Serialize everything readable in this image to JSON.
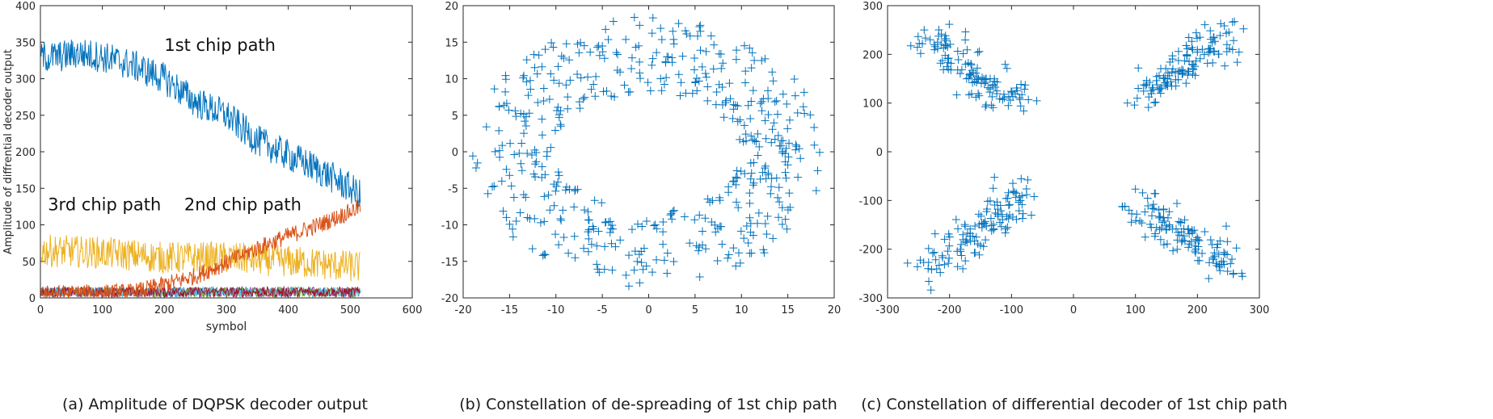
{
  "captions": {
    "a": "(a) Amplitude of DQPSK decoder output",
    "b": "(b) Constellation of de-spreading of 1st chip path",
    "c": "(c) Constellation of differential decoder of 1st chip path"
  },
  "colors": {
    "series1": "#0072BD",
    "series2": "#D95319",
    "series3": "#EDB120",
    "series4": "#7E2F8E",
    "series5": "#77AC30",
    "series6": "#4DBEEE",
    "series7": "#A2142F",
    "scatter": "#0072BD"
  },
  "chart_data": [
    {
      "type": "line",
      "xlabel": "symbol",
      "ylabel": "Amplitude of diffrential decoder output",
      "xlim": [
        0,
        600
      ],
      "ylim": [
        0,
        400
      ],
      "xticks": [
        "0",
        "100",
        "200",
        "300",
        "400",
        "500",
        "600"
      ],
      "yticks": [
        "0",
        "50",
        "100",
        "150",
        "200",
        "250",
        "300",
        "350",
        "400"
      ],
      "grid": false,
      "annotations": [
        {
          "text": "1st chip path",
          "x": 200,
          "y": 338
        },
        {
          "text": "2nd chip path",
          "x": 232,
          "y": 120
        },
        {
          "text": "3rd chip path",
          "x": 12,
          "y": 120
        }
      ],
      "series": [
        {
          "name": "1st chip path",
          "color_key": "series1",
          "x_range": [
            1,
            516
          ],
          "envelope_x": [
            0,
            30,
            60,
            100,
            150,
            200,
            250,
            300,
            350,
            400,
            450,
            500,
            516
          ],
          "envelope_y": [
            330,
            330,
            335,
            330,
            318,
            300,
            268,
            250,
            215,
            195,
            175,
            150,
            140
          ],
          "noise_amplitude": 22
        },
        {
          "name": "2nd chip path",
          "color_key": "series2",
          "x_range": [
            1,
            516
          ],
          "envelope_x": [
            0,
            150,
            200,
            250,
            300,
            350,
            400,
            450,
            500,
            516
          ],
          "envelope_y": [
            5,
            8,
            18,
            30,
            48,
            68,
            85,
            100,
            118,
            125
          ],
          "noise_amplitude": 12
        },
        {
          "name": "3rd chip path",
          "color_key": "series3",
          "x_range": [
            1,
            516
          ],
          "envelope_x": [
            0,
            100,
            200,
            300,
            400,
            516
          ],
          "envelope_y": [
            65,
            62,
            55,
            55,
            50,
            42
          ],
          "noise_amplitude": 22
        },
        {
          "name": "",
          "color_key": "series4",
          "x_range": [
            1,
            516
          ],
          "envelope_x": [
            0,
            516
          ],
          "envelope_y": [
            8,
            8
          ],
          "noise_amplitude": 7
        },
        {
          "name": "",
          "color_key": "series5",
          "x_range": [
            1,
            516
          ],
          "envelope_x": [
            0,
            516
          ],
          "envelope_y": [
            8,
            8
          ],
          "noise_amplitude": 7
        },
        {
          "name": "",
          "color_key": "series6",
          "x_range": [
            1,
            516
          ],
          "envelope_x": [
            0,
            516
          ],
          "envelope_y": [
            8,
            8
          ],
          "noise_amplitude": 7
        },
        {
          "name": "",
          "color_key": "series7",
          "x_range": [
            1,
            516
          ],
          "envelope_x": [
            0,
            516
          ],
          "envelope_y": [
            8,
            8
          ],
          "noise_amplitude": 7
        }
      ]
    },
    {
      "type": "scatter",
      "marker": "+",
      "xlabel": "",
      "ylabel": "",
      "xlim": [
        -20,
        20
      ],
      "ylim": [
        -20,
        20
      ],
      "xticks": [
        "-20",
        "-15",
        "-10",
        "-5",
        "0",
        "5",
        "10",
        "15",
        "20"
      ],
      "yticks": [
        "-20",
        "-15",
        "-10",
        "-5",
        "0",
        "5",
        "10",
        "15",
        "20"
      ],
      "grid": false,
      "distribution": {
        "shape": "ring",
        "center": [
          0,
          0
        ],
        "radius_x": [
          10,
          19
        ],
        "radius_y": [
          8,
          18.5
        ],
        "count": 500
      }
    },
    {
      "type": "scatter",
      "marker": "+",
      "xlabel": "",
      "ylabel": "",
      "xlim": [
        -300,
        300
      ],
      "ylim": [
        -300,
        300
      ],
      "xticks": [
        "-300",
        "-200",
        "-100",
        "0",
        "100",
        "200",
        "300"
      ],
      "yticks": [
        "-300",
        "-200",
        "-100",
        "0",
        "100",
        "200",
        "300"
      ],
      "grid": false,
      "distribution": {
        "shape": "four-clusters",
        "clusters": [
          {
            "from": [
              -240,
              240
            ],
            "to": [
              -90,
              100
            ]
          },
          {
            "from": [
              90,
              100
            ],
            "to": [
              250,
              245
            ]
          },
          {
            "from": [
              -240,
              -250
            ],
            "to": [
              -90,
              -95
            ]
          },
          {
            "from": [
              100,
              -95
            ],
            "to": [
              250,
              -235
            ]
          }
        ],
        "count_per_cluster": 125,
        "spread": 18
      }
    }
  ]
}
